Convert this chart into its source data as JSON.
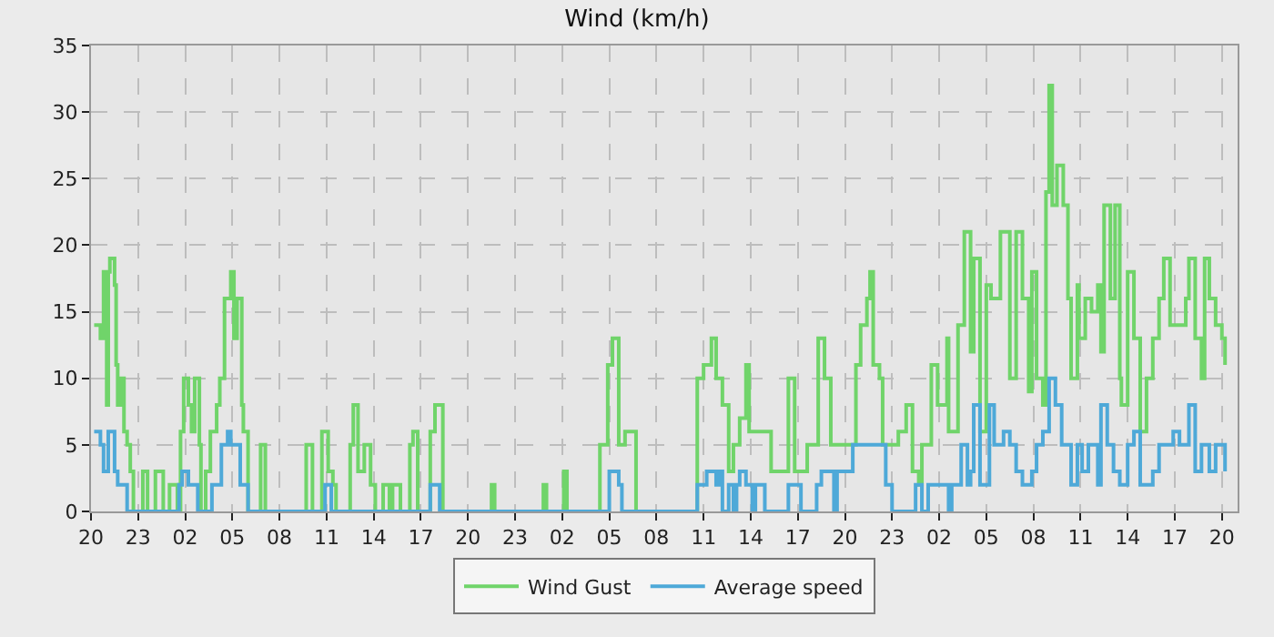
{
  "chart_data": {
    "type": "step",
    "title": "Wind (km/h)",
    "xlim": [
      "--01-01T20:00",
      "--01-04T21:00"
    ],
    "ylim": [
      0,
      35
    ],
    "yticks": [
      0,
      5,
      10,
      15,
      20,
      25,
      30,
      35
    ],
    "xticks": [
      {
        "value": "--01-01T20:00",
        "label": "20"
      },
      {
        "value": "--01-01T23:00",
        "label": "23"
      },
      {
        "value": "--01-02T02:00",
        "label": "02"
      },
      {
        "value": "--01-02T05:00",
        "label": "05"
      },
      {
        "value": "--01-02T08:00",
        "label": "08"
      },
      {
        "value": "--01-02T11:00",
        "label": "11"
      },
      {
        "value": "--01-02T14:00",
        "label": "14"
      },
      {
        "value": "--01-02T17:00",
        "label": "17"
      },
      {
        "value": "--01-02T20:00",
        "label": "20"
      },
      {
        "value": "--01-02T23:00",
        "label": "23"
      },
      {
        "value": "--01-03T02:00",
        "label": "02"
      },
      {
        "value": "--01-03T05:00",
        "label": "05"
      },
      {
        "value": "--01-03T08:00",
        "label": "08"
      },
      {
        "value": "--01-03T11:00",
        "label": "11"
      },
      {
        "value": "--01-03T14:00",
        "label": "14"
      },
      {
        "value": "--01-03T17:00",
        "label": "17"
      },
      {
        "value": "--01-03T20:00",
        "label": "20"
      },
      {
        "value": "--01-03T23:00",
        "label": "23"
      },
      {
        "value": "--01-04T02:00",
        "label": "02"
      },
      {
        "value": "--01-04T05:00",
        "label": "05"
      },
      {
        "value": "--01-04T08:00",
        "label": "08"
      },
      {
        "value": "--01-04T11:00",
        "label": "11"
      },
      {
        "value": "--01-04T14:00",
        "label": "14"
      },
      {
        "value": "--01-04T17:00",
        "label": "17"
      },
      {
        "value": "--01-04T20:00",
        "label": "20"
      }
    ],
    "grid": true,
    "legend": "bottom",
    "marker": "none",
    "line_style": "solid",
    "series": [
      {
        "name": "Wind Gust",
        "color": "#70d46a",
        "x": [
          "--01-01T20:12",
          "--01-01T20:36",
          "--01-01T20:48",
          "--01-01T21:00",
          "--01-01T21:06",
          "--01-01T21:12",
          "--01-01T21:30",
          "--01-01T21:36",
          "--01-01T21:42",
          "--01-01T21:54",
          "--01-01T22:06",
          "--01-01T22:18",
          "--01-01T22:30",
          "--01-01T22:42",
          "--01-01T23:18",
          "--01-01T23:36",
          "--01-02T00:06",
          "--01-02T00:36",
          "--01-02T01:00",
          "--01-02T01:30",
          "--01-02T01:42",
          "--01-02T01:54",
          "--01-02T02:12",
          "--01-02T02:24",
          "--01-02T02:36",
          "--01-02T02:54",
          "--01-02T03:00",
          "--01-02T03:18",
          "--01-02T03:36",
          "--01-02T04:00",
          "--01-02T04:12",
          "--01-02T04:30",
          "--01-02T04:54",
          "--01-02T05:06",
          "--01-02T05:18",
          "--01-02T05:36",
          "--01-02T05:42",
          "--01-02T06:00",
          "--01-02T06:48",
          "--01-02T07:06",
          "--01-02T09:42",
          "--01-02T10:06",
          "--01-02T10:42",
          "--01-02T11:06",
          "--01-02T11:24",
          "--01-02T11:36",
          "--01-02T12:30",
          "--01-02T12:42",
          "--01-02T13:00",
          "--01-02T13:24",
          "--01-02T13:48",
          "--01-02T14:06",
          "--01-02T14:36",
          "--01-02T15:00",
          "--01-02T15:12",
          "--01-02T15:42",
          "--01-02T16:18",
          "--01-02T16:30",
          "--01-02T16:48",
          "--01-02T17:36",
          "--01-02T17:54",
          "--01-02T18:24",
          "--01-02T21:30",
          "--01-02T21:42",
          "--01-03T00:48",
          "--01-03T01:00",
          "--01-03T02:06",
          "--01-03T02:18",
          "--01-03T04:24",
          "--01-03T04:54",
          "--01-03T05:12",
          "--01-03T05:36",
          "--01-03T06:00",
          "--01-03T06:42",
          "--01-03T10:36",
          "--01-03T11:00",
          "--01-03T11:30",
          "--01-03T11:48",
          "--01-03T12:12",
          "--01-03T12:36",
          "--01-03T12:54",
          "--01-03T13:18",
          "--01-03T13:42",
          "--01-03T13:54",
          "--01-03T15:06",
          "--01-03T15:18",
          "--01-03T16:00",
          "--01-03T16:24",
          "--01-03T16:48",
          "--01-03T17:36",
          "--01-03T18:18",
          "--01-03T18:42",
          "--01-03T19:06",
          "--01-03T20:06",
          "--01-03T20:42",
          "--01-03T21:00",
          "--01-03T21:24",
          "--01-03T21:36",
          "--01-03T21:48",
          "--01-03T22:12",
          "--01-03T22:24",
          "--01-03T23:24",
          "--01-03T23:54",
          "--01-04T00:18",
          "--01-04T00:42",
          "--01-04T00:54",
          "--01-04T01:30",
          "--01-04T01:54",
          "--01-04T02:30",
          "--01-04T02:36",
          "--01-04T03:12",
          "--01-04T03:36",
          "--01-04T04:00",
          "--01-04T04:12",
          "--01-04T04:36",
          "--01-04T05:00",
          "--01-04T05:18",
          "--01-04T05:54",
          "--01-04T06:30",
          "--01-04T06:54",
          "--01-04T07:18",
          "--01-04T07:42",
          "--01-04T07:54",
          "--01-04T08:12",
          "--01-04T08:36",
          "--01-04T08:48",
          "--01-04T09:00",
          "--01-04T09:12",
          "--01-04T09:30",
          "--01-04T09:54",
          "--01-04T10:12",
          "--01-04T10:24",
          "--01-04T10:48",
          "--01-04T10:54",
          "--01-04T11:18",
          "--01-04T11:42",
          "--01-04T12:06",
          "--01-04T12:18",
          "--01-04T12:30",
          "--01-04T12:54",
          "--01-04T13:12",
          "--01-04T13:30",
          "--01-04T13:36",
          "--01-04T14:00",
          "--01-04T14:24",
          "--01-04T14:48",
          "--01-04T15:12",
          "--01-04T15:36",
          "--01-04T16:00",
          "--01-04T16:18",
          "--01-04T16:42",
          "--01-04T17:42",
          "--01-04T17:54",
          "--01-04T18:18",
          "--01-04T18:42",
          "--01-04T18:54",
          "--01-04T19:12",
          "--01-04T19:36",
          "--01-04T20:00",
          "--01-04T20:12"
        ],
        "values": [
          14,
          13,
          18,
          8,
          18,
          19,
          17,
          11,
          8,
          10,
          6,
          5,
          3,
          0,
          3,
          0,
          3,
          0,
          2,
          0,
          6,
          10,
          8,
          6,
          10,
          5,
          0,
          3,
          6,
          8,
          10,
          16,
          18,
          13,
          16,
          8,
          6,
          0,
          5,
          0,
          5,
          0,
          6,
          3,
          2,
          0,
          5,
          8,
          3,
          5,
          2,
          0,
          2,
          0,
          2,
          0,
          5,
          6,
          0,
          6,
          8,
          0,
          2,
          0,
          2,
          0,
          3,
          0,
          5,
          11,
          13,
          5,
          6,
          0,
          10,
          11,
          13,
          10,
          8,
          3,
          5,
          7,
          11,
          6,
          6,
          3,
          3,
          10,
          3,
          5,
          13,
          10,
          5,
          5,
          11,
          14,
          16,
          18,
          11,
          10,
          5,
          6,
          8,
          3,
          2,
          5,
          11,
          8,
          13,
          6,
          14,
          21,
          12,
          19,
          6,
          17,
          16,
          21,
          10,
          21,
          16,
          9,
          18,
          10,
          8,
          24,
          32,
          23,
          26,
          23,
          16,
          10,
          17,
          13,
          16,
          15,
          17,
          12,
          23,
          16,
          23,
          10,
          8,
          18,
          13,
          6,
          10,
          13,
          16,
          19,
          14,
          16,
          19,
          13,
          10,
          19,
          16,
          14,
          13,
          11
        ]
      },
      {
        "name": "Average speed",
        "color": "#4ea9d8",
        "x": [
          "--01-01T20:12",
          "--01-01T20:36",
          "--01-01T20:48",
          "--01-01T21:06",
          "--01-01T21:30",
          "--01-01T21:42",
          "--01-01T22:18",
          "--01-02T01:36",
          "--01-02T01:48",
          "--01-02T02:12",
          "--01-02T02:48",
          "--01-02T03:42",
          "--01-02T04:18",
          "--01-02T04:42",
          "--01-02T04:54",
          "--01-02T05:30",
          "--01-02T06:00",
          "--01-02T10:54",
          "--01-02T11:18",
          "--01-02T17:36",
          "--01-02T18:12",
          "--01-03T05:00",
          "--01-03T05:36",
          "--01-03T05:48",
          "--01-03T10:36",
          "--01-03T11:12",
          "--01-03T11:48",
          "--01-03T12:00",
          "--01-03T12:12",
          "--01-03T12:36",
          "--01-03T12:54",
          "--01-03T13:06",
          "--01-03T13:18",
          "--01-03T13:42",
          "--01-03T14:06",
          "--01-03T14:18",
          "--01-03T14:54",
          "--01-03T16:24",
          "--01-03T17:12",
          "--01-03T18:12",
          "--01-03T18:30",
          "--01-03T19:18",
          "--01-03T19:30",
          "--01-03T20:30",
          "--01-03T22:24",
          "--01-03T22:36",
          "--01-03T23:00",
          "--01-04T00:30",
          "--01-04T00:54",
          "--01-04T01:18",
          "--01-04T02:36",
          "--01-04T02:48",
          "--01-04T03:24",
          "--01-04T03:48",
          "--01-04T04:00",
          "--01-04T04:12",
          "--01-04T04:36",
          "--01-04T05:12",
          "--01-04T05:30",
          "--01-04T06:06",
          "--01-04T06:30",
          "--01-04T06:54",
          "--01-04T07:18",
          "--01-04T07:54",
          "--01-04T08:12",
          "--01-04T08:36",
          "--01-04T09:00",
          "--01-04T09:24",
          "--01-04T09:48",
          "--01-04T10:24",
          "--01-04T10:48",
          "--01-04T11:06",
          "--01-04T11:30",
          "--01-04T12:06",
          "--01-04T12:18",
          "--01-04T12:42",
          "--01-04T13:06",
          "--01-04T13:30",
          "--01-04T14:00",
          "--01-04T14:24",
          "--01-04T14:48",
          "--01-04T15:36",
          "--01-04T16:00",
          "--01-04T16:54",
          "--01-04T17:18",
          "--01-04T17:54",
          "--01-04T18:18",
          "--01-04T18:42",
          "--01-04T19:12",
          "--01-04T19:36",
          "--01-04T20:12"
        ],
        "values": [
          6,
          5,
          3,
          6,
          3,
          2,
          0,
          2,
          3,
          2,
          0,
          2,
          5,
          6,
          5,
          2,
          0,
          2,
          0,
          2,
          0,
          3,
          2,
          0,
          2,
          3,
          2,
          3,
          0,
          2,
          0,
          2,
          3,
          2,
          0,
          2,
          0,
          2,
          0,
          2,
          3,
          0,
          3,
          5,
          5,
          2,
          0,
          2,
          0,
          2,
          0,
          2,
          5,
          2,
          3,
          8,
          2,
          8,
          5,
          6,
          5,
          3,
          2,
          3,
          5,
          6,
          10,
          8,
          5,
          2,
          5,
          3,
          5,
          2,
          8,
          5,
          3,
          2,
          5,
          6,
          2,
          3,
          5,
          6,
          5,
          8,
          3,
          5,
          3,
          5,
          3
        ]
      }
    ]
  }
}
